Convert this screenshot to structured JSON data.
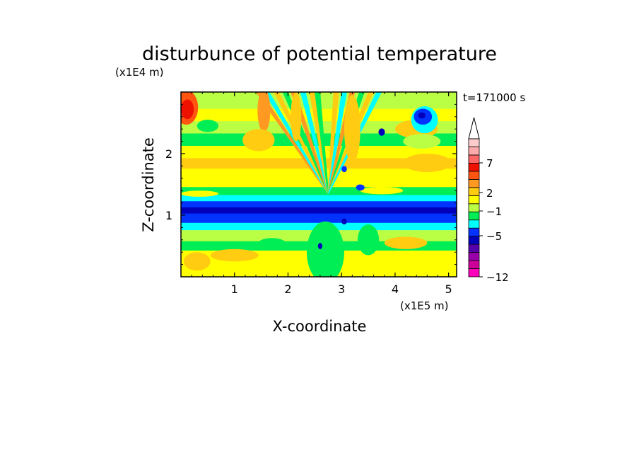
{
  "chart_data": {
    "type": "heatmap",
    "title": "disturbunce of potential temperature",
    "xlabel": "X-coordinate",
    "ylabel": "Z-coordinate",
    "x_unit": "(x1E5 m)",
    "y_unit": "(x1E4 m)",
    "time_label": "t=171000 s",
    "xlim": [
      0,
      5.15
    ],
    "ylim": [
      0,
      3.0
    ],
    "x_ticks": [
      1,
      2,
      3,
      4,
      5
    ],
    "x_tick_labels": [
      "1",
      "2",
      "3",
      "4",
      "5"
    ],
    "y_ticks": [
      1,
      2
    ],
    "y_tick_labels": [
      "1",
      "2"
    ],
    "colorbar": {
      "labels": [
        "7",
        "2",
        "−1",
        "−5",
        "−12"
      ],
      "colors": [
        "#ff00bb",
        "#cc0099",
        "#9900aa",
        "#5500aa",
        "#0000bb",
        "#0033ff",
        "#00ffff",
        "#00ee55",
        "#bbff44",
        "#ffff00",
        "#ffcc11",
        "#ff9922",
        "#ff5511",
        "#ee1100",
        "#ff6666",
        "#ffaaaa",
        "#ffcccc"
      ],
      "extend_max": true
    },
    "bands": [
      {
        "z0": 0.0,
        "z1": 0.1,
        "level": "2"
      },
      {
        "z0": 0.1,
        "z1": 0.45,
        "level": "2"
      },
      {
        "z0": 0.45,
        "z1": 0.6,
        "level": "0"
      },
      {
        "z0": 0.6,
        "z1": 0.78,
        "level": "1"
      },
      {
        "z0": 0.78,
        "z1": 0.9,
        "level": "-1"
      },
      {
        "z0": 0.9,
        "z1": 1.05,
        "level": "-3"
      },
      {
        "z0": 1.05,
        "z1": 1.15,
        "level": "-4"
      },
      {
        "z0": 1.15,
        "z1": 1.25,
        "level": "-3"
      },
      {
        "z0": 1.25,
        "z1": 1.35,
        "level": "-1"
      },
      {
        "z0": 1.35,
        "z1": 1.48,
        "level": "0"
      },
      {
        "z0": 1.48,
        "z1": 1.58,
        "level": "2"
      },
      {
        "z0": 1.58,
        "z1": 1.78,
        "level": "2"
      },
      {
        "z0": 1.78,
        "z1": 1.95,
        "level": "3"
      },
      {
        "z0": 1.95,
        "z1": 2.15,
        "level": "2"
      },
      {
        "z0": 2.15,
        "z1": 2.35,
        "level": "0"
      },
      {
        "z0": 2.35,
        "z1": 2.55,
        "level": "1"
      },
      {
        "z0": 2.55,
        "z1": 2.75,
        "level": "2"
      },
      {
        "z0": 2.75,
        "z1": 3.0,
        "level": "1"
      }
    ],
    "features": [
      {
        "x": 0.1,
        "z": 2.75,
        "rx": 0.22,
        "rz": 0.28,
        "level": "5"
      },
      {
        "x": 0.12,
        "z": 2.72,
        "rx": 0.12,
        "rz": 0.16,
        "level": "7"
      },
      {
        "x": 0.5,
        "z": 2.45,
        "rx": 0.2,
        "rz": 0.1,
        "level": "0"
      },
      {
        "x": 1.55,
        "z": 2.7,
        "rx": 0.12,
        "rz": 0.35,
        "level": "4"
      },
      {
        "x": 2.15,
        "z": 2.6,
        "rx": 0.1,
        "rz": 0.4,
        "level": "3"
      },
      {
        "x": 3.2,
        "z": 2.4,
        "rx": 0.15,
        "rz": 0.55,
        "level": "3"
      },
      {
        "x": 4.4,
        "z": 2.4,
        "rx": 0.4,
        "rz": 0.15,
        "level": "3"
      },
      {
        "x": 4.55,
        "z": 2.55,
        "rx": 0.25,
        "rz": 0.22,
        "level": "-1"
      },
      {
        "x": 4.52,
        "z": 2.6,
        "rx": 0.17,
        "rz": 0.13,
        "level": "-3"
      },
      {
        "x": 4.5,
        "z": 2.62,
        "rx": 0.07,
        "rz": 0.05,
        "level": "-4"
      },
      {
        "x": 4.5,
        "z": 2.2,
        "rx": 0.35,
        "rz": 0.12,
        "level": "1"
      },
      {
        "x": 1.45,
        "z": 2.22,
        "rx": 0.3,
        "rz": 0.18,
        "level": "3"
      },
      {
        "x": 4.6,
        "z": 1.85,
        "rx": 0.45,
        "rz": 0.15,
        "level": "3"
      },
      {
        "x": 0.35,
        "z": 1.35,
        "rx": 0.35,
        "rz": 0.05,
        "level": "2"
      },
      {
        "x": 3.75,
        "z": 1.4,
        "rx": 0.4,
        "rz": 0.06,
        "level": "2"
      },
      {
        "x": 2.7,
        "z": 0.4,
        "rx": 0.35,
        "rz": 0.5,
        "level": "0"
      },
      {
        "x": 3.5,
        "z": 0.6,
        "rx": 0.2,
        "rz": 0.25,
        "level": "0"
      },
      {
        "x": 4.2,
        "z": 0.55,
        "rx": 0.4,
        "rz": 0.1,
        "level": "3"
      },
      {
        "x": 1.0,
        "z": 0.35,
        "rx": 0.45,
        "rz": 0.1,
        "level": "3"
      },
      {
        "x": 0.3,
        "z": 0.25,
        "rx": 0.25,
        "rz": 0.15,
        "level": "3"
      },
      {
        "x": 1.7,
        "z": 0.55,
        "rx": 0.25,
        "rz": 0.08,
        "level": "0"
      },
      {
        "x": 2.6,
        "z": 0.5,
        "rx": 0.04,
        "rz": 0.05,
        "level": "-4"
      },
      {
        "x": 3.05,
        "z": 0.9,
        "rx": 0.05,
        "rz": 0.05,
        "level": "-4"
      },
      {
        "x": 3.75,
        "z": 2.35,
        "rx": 0.06,
        "rz": 0.06,
        "level": "-4"
      },
      {
        "x": 3.05,
        "z": 1.75,
        "rx": 0.05,
        "rz": 0.05,
        "level": "-3"
      },
      {
        "x": 3.35,
        "z": 1.45,
        "rx": 0.08,
        "rz": 0.05,
        "level": "-3"
      }
    ],
    "rays": {
      "origin_x": 2.75,
      "origin_z": 1.35,
      "top_x": [
        1.45,
        1.6,
        1.78,
        1.95,
        2.1,
        2.28,
        2.45,
        2.55,
        2.9,
        3.05,
        3.2,
        3.38,
        3.55,
        3.7
      ],
      "levels": [
        "4",
        "-1",
        "3",
        "0",
        "4",
        "-1",
        "3",
        "0",
        "3",
        "-1",
        "4",
        "0",
        "3",
        "-1"
      ]
    }
  }
}
